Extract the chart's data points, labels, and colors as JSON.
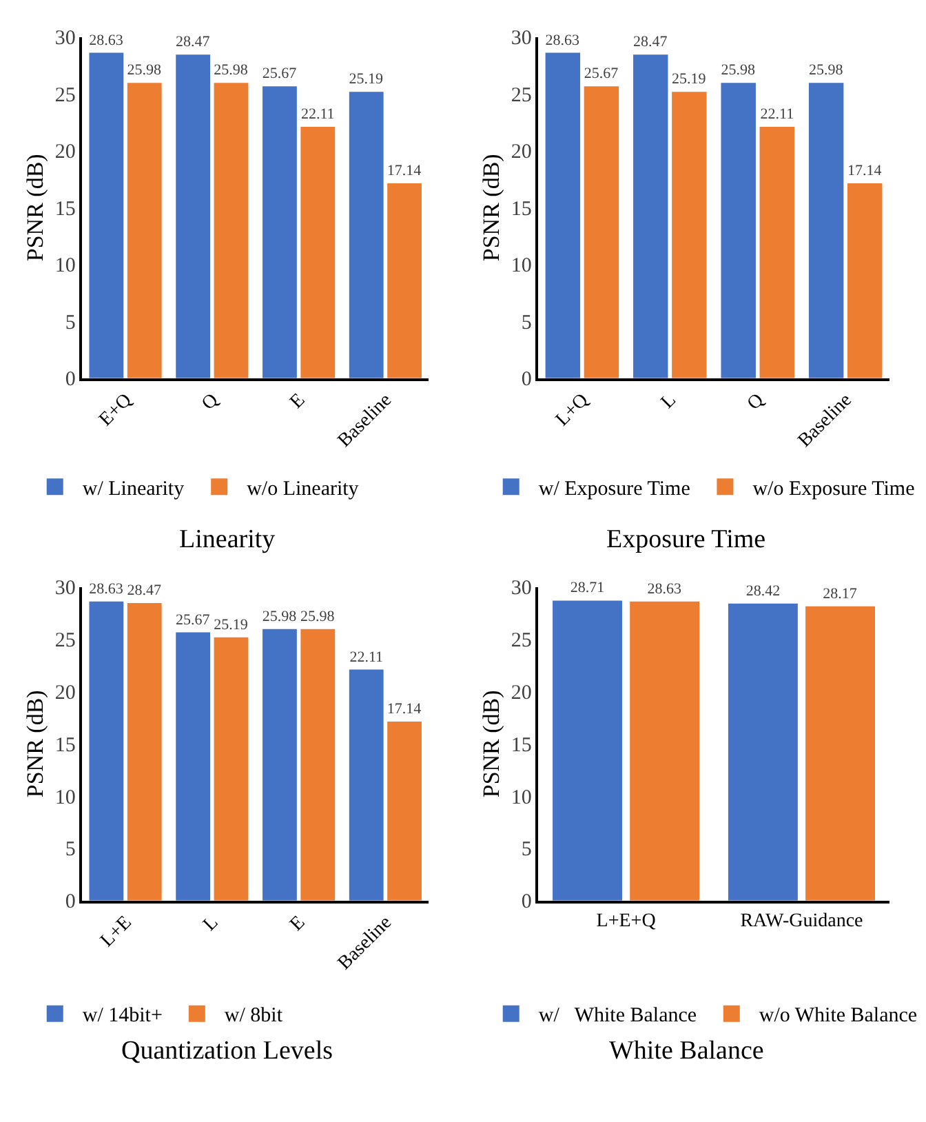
{
  "chart_data": [
    {
      "type": "bar",
      "title": "Linearity",
      "ylabel": "PSNR (dB)",
      "categories": [
        "E+Q",
        "Q",
        "E",
        "Baseline"
      ],
      "series": [
        {
          "name": "w/ Linearity",
          "color": "#4472c4",
          "values": [
            28.63,
            28.47,
            25.67,
            25.19
          ]
        },
        {
          "name": "w/o Linearity",
          "color": "#ed7d31",
          "values": [
            25.98,
            25.98,
            22.11,
            17.14
          ]
        }
      ],
      "ylim": [
        0,
        30
      ],
      "yticks": [
        0,
        5,
        10,
        15,
        20,
        25,
        30
      ],
      "data_labels": true,
      "legend": "bottom",
      "grid": false
    },
    {
      "type": "bar",
      "title": "Exposure Time",
      "ylabel": "PSNR (dB)",
      "categories": [
        "L+Q",
        "L",
        "Q",
        "Baseline"
      ],
      "series": [
        {
          "name": "w/ Exposure Time",
          "color": "#4472c4",
          "values": [
            28.63,
            28.47,
            25.98,
            25.98
          ]
        },
        {
          "name": "w/o Exposure Time",
          "color": "#ed7d31",
          "values": [
            25.67,
            25.19,
            22.11,
            17.14
          ]
        }
      ],
      "ylim": [
        0,
        30
      ],
      "yticks": [
        0,
        5,
        10,
        15,
        20,
        25,
        30
      ],
      "data_labels": true,
      "legend": "bottom",
      "grid": false
    },
    {
      "type": "bar",
      "title": "Quantization Levels",
      "ylabel": "PSNR (dB)",
      "categories": [
        "L+E",
        "L",
        "E",
        "Baseline"
      ],
      "series": [
        {
          "name": "w/ 14bit+",
          "color": "#4472c4",
          "values": [
            28.63,
            25.67,
            25.98,
            22.11
          ]
        },
        {
          "name": "w/ 8bit",
          "color": "#ed7d31",
          "values": [
            28.47,
            25.19,
            25.98,
            17.14
          ]
        }
      ],
      "ylim": [
        0,
        30
      ],
      "yticks": [
        0,
        5,
        10,
        15,
        20,
        25,
        30
      ],
      "data_labels": true,
      "legend": "bottom",
      "grid": false
    },
    {
      "type": "bar",
      "title": "White Balance",
      "ylabel": "PSNR (dB)",
      "categories": [
        "L+E+Q",
        "RAW-Guidance"
      ],
      "series": [
        {
          "name": "w/   White Balance",
          "color": "#4472c4",
          "values": [
            28.71,
            28.42
          ]
        },
        {
          "name": "w/o White Balance",
          "color": "#ed7d31",
          "values": [
            28.63,
            28.17
          ]
        }
      ],
      "ylim": [
        0,
        30
      ],
      "yticks": [
        0,
        5,
        10,
        15,
        20,
        25,
        30
      ],
      "data_labels": true,
      "legend": "bottom",
      "grid": false
    }
  ]
}
